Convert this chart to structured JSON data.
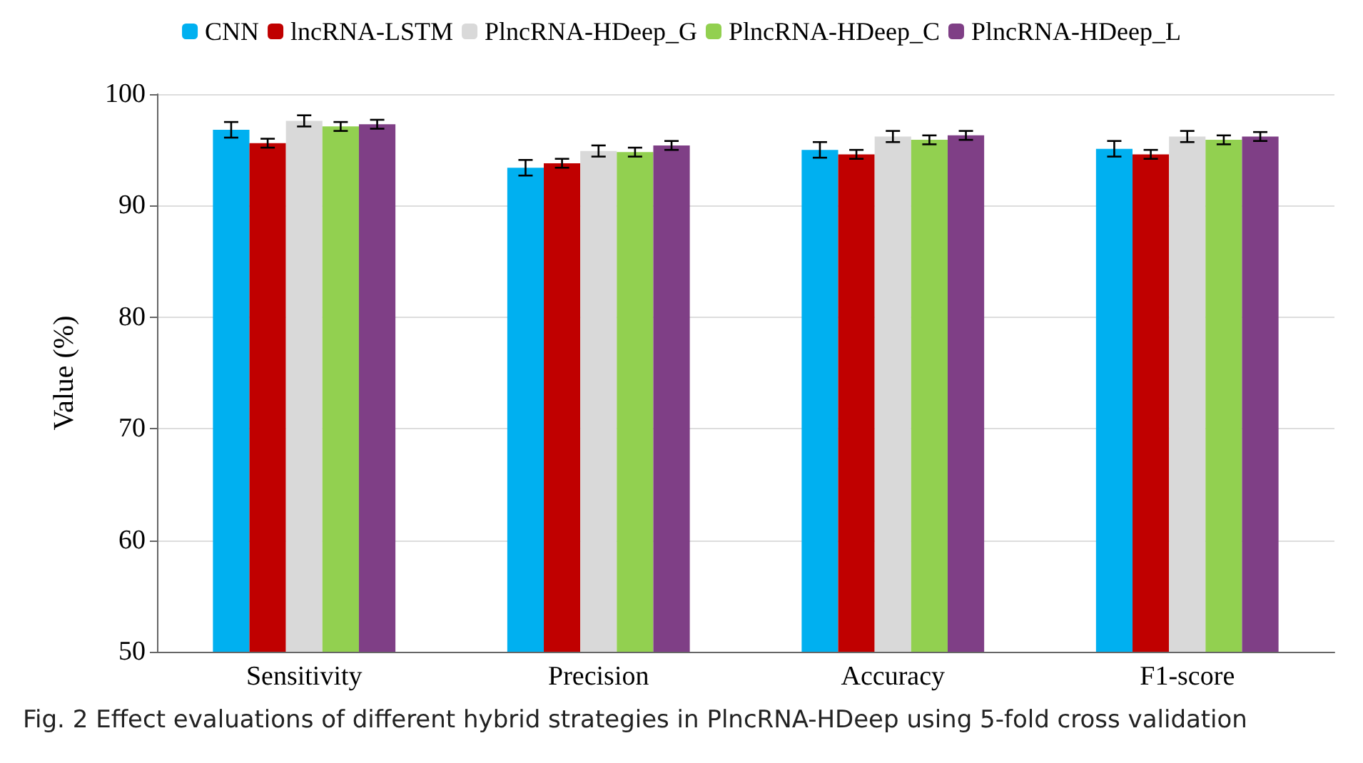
{
  "chart_data": {
    "type": "bar",
    "ylabel": "Value (%)",
    "categories": [
      "Sensitivity",
      "Precision",
      "Accuracy",
      "F1-score"
    ],
    "series": [
      {
        "name": "CNN",
        "color": "#00b0f0",
        "values": [
          96.8,
          93.4,
          95.0,
          95.1
        ],
        "errors": [
          0.7,
          0.7,
          0.7,
          0.7
        ]
      },
      {
        "name": "lncRNA-LSTM",
        "color": "#c00000",
        "values": [
          95.6,
          93.8,
          94.6,
          94.6
        ],
        "errors": [
          0.4,
          0.4,
          0.4,
          0.4
        ]
      },
      {
        "name": "PlncRNA-HDeep_G",
        "color": "#d9d9d9",
        "values": [
          97.6,
          94.9,
          96.2,
          96.2
        ],
        "errors": [
          0.5,
          0.5,
          0.5,
          0.5
        ]
      },
      {
        "name": "PlncRNA-HDeep_C",
        "color": "#92d050",
        "values": [
          97.1,
          94.8,
          95.9,
          95.9
        ],
        "errors": [
          0.4,
          0.4,
          0.4,
          0.4
        ]
      },
      {
        "name": "PlncRNA-HDeep_L",
        "color": "#7f3f86",
        "values": [
          97.3,
          95.4,
          96.3,
          96.2
        ],
        "errors": [
          0.4,
          0.4,
          0.4,
          0.4
        ]
      }
    ],
    "ylim": [
      50,
      100
    ],
    "yticks": [
      50,
      60,
      70,
      80,
      90,
      100
    ],
    "grid": "y",
    "legend": "top",
    "annotations": [
      "Fig. 2  Effect evaluations of different hybrid strategies in PlncRNA-HDeep using 5-fold cross validation"
    ]
  }
}
